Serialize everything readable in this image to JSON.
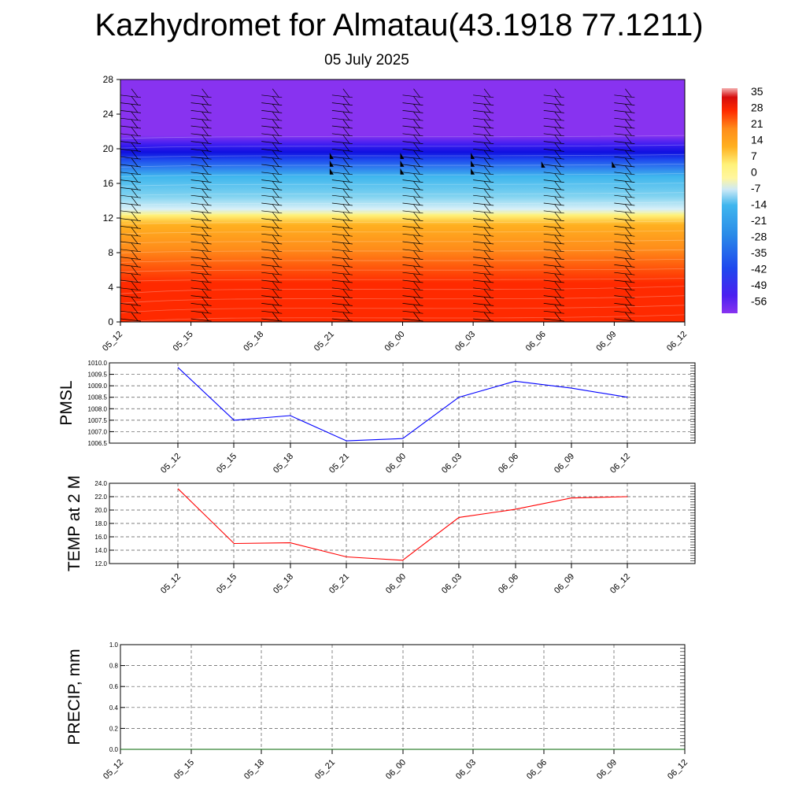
{
  "header": {
    "title": "Kazhydromet for Almatau(43.1918 77.1211)",
    "subtitle": "05 July 2025"
  },
  "chart_data": [
    {
      "type": "heatmap",
      "name": "temperature-cross-section",
      "x_ticks": [
        "05_12",
        "05_15",
        "05_18",
        "05_21",
        "06_00",
        "06_03",
        "06_06",
        "06_09",
        "06_12"
      ],
      "y_ticks": [
        0,
        4,
        8,
        12,
        16,
        20,
        24,
        28
      ],
      "ylim": [
        0,
        28
      ],
      "colorbar_labels": [
        "35",
        "28",
        "21",
        "14",
        "7",
        "0",
        "-7",
        "-14",
        "-21",
        "-28",
        "-35",
        "-42",
        "-49",
        "-56"
      ],
      "colors": {
        "hot": "#ff2a00",
        "warm": "#ff8c1a",
        "neutral": "#fff27a",
        "cool": "#3fb6ee",
        "cold": "#1e48ee",
        "top": "#8833f0"
      }
    },
    {
      "type": "line",
      "ylabel": "PMSL",
      "x": [
        "05_12",
        "05_15",
        "05_18",
        "05_21",
        "06_00",
        "06_03",
        "06_06",
        "06_09",
        "06_12"
      ],
      "series": [
        {
          "values": [
            1009.8,
            1007.5,
            1007.7,
            1006.6,
            1006.7,
            1008.5,
            1009.2,
            1008.9,
            1008.5
          ],
          "color": "#0000ff"
        }
      ],
      "ylim": [
        1006.5,
        1010.0
      ],
      "y_ticks": [
        "1010.0",
        "1009.5",
        "1009.0",
        "1008.5",
        "1008.0",
        "1007.5",
        "1007.0",
        "1006.5"
      ],
      "grid": true
    },
    {
      "type": "line",
      "ylabel": "TEMP at 2 M",
      "x": [
        "05_12",
        "05_15",
        "05_18",
        "05_21",
        "06_00",
        "06_03",
        "06_06",
        "06_09",
        "06_12"
      ],
      "series": [
        {
          "values": [
            23.2,
            15.0,
            15.1,
            13.0,
            12.5,
            18.9,
            20.1,
            21.8,
            22.0
          ],
          "color": "#ff0000"
        }
      ],
      "ylim": [
        12.0,
        24.0
      ],
      "y_ticks": [
        "24.0",
        "22.0",
        "20.0",
        "18.0",
        "16.0",
        "14.0",
        "12.0"
      ],
      "grid": true
    },
    {
      "type": "line",
      "ylabel": "PRECIP, mm",
      "x": [
        "05_12",
        "05_15",
        "05_18",
        "05_21",
        "06_00",
        "06_03",
        "06_06",
        "06_09",
        "06_12"
      ],
      "series": [
        {
          "values": [
            0,
            0,
            0,
            0,
            0,
            0,
            0,
            0,
            0
          ],
          "color": "#006400"
        }
      ],
      "ylim": [
        0,
        1.0
      ],
      "y_ticks": [
        "1.0",
        "0.8",
        "0.6",
        "0.4",
        "0.2",
        "0.0"
      ],
      "grid": true
    }
  ]
}
